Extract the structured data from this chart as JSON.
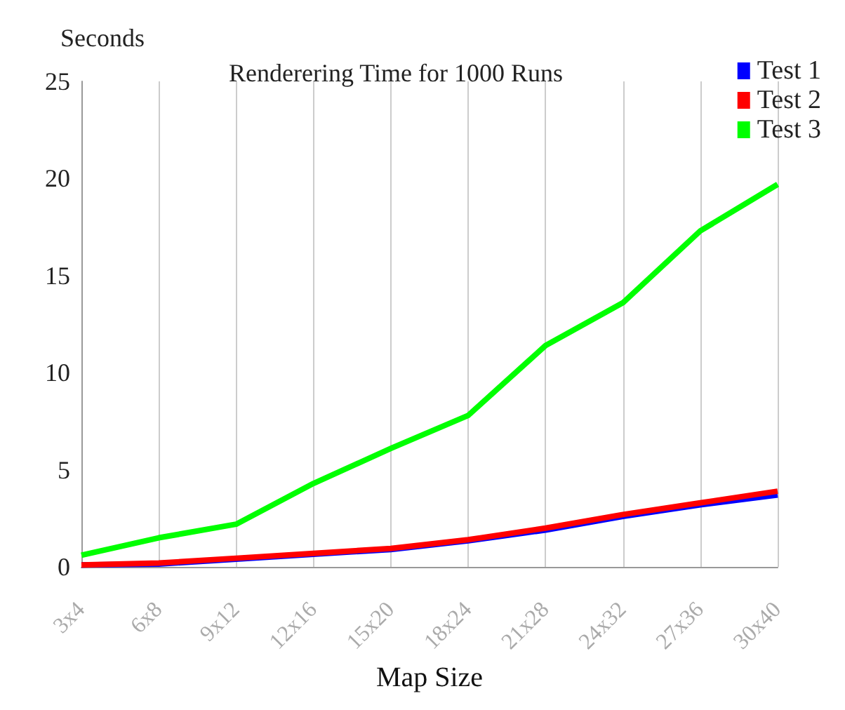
{
  "chart_data": {
    "type": "line",
    "title": "Renderering Time for 1000 Runs",
    "xlabel": "Map Size",
    "ylabel": "Seconds",
    "categories": [
      "3x4",
      "6x8",
      "9x12",
      "12x16",
      "15x20",
      "18x24",
      "21x28",
      "24x32",
      "27x36",
      "30x40"
    ],
    "series": [
      {
        "name": "Test 1",
        "color": "#0000ff",
        "values": [
          0.1,
          0.15,
          0.4,
          0.65,
          0.9,
          1.35,
          1.9,
          2.6,
          3.2,
          3.7
        ]
      },
      {
        "name": "Test 2",
        "color": "#ff0000",
        "values": [
          0.1,
          0.2,
          0.45,
          0.7,
          0.95,
          1.4,
          2.0,
          2.7,
          3.3,
          3.9
        ]
      },
      {
        "name": "Test 3",
        "color": "#00ff00",
        "values": [
          0.6,
          1.5,
          2.2,
          4.3,
          6.1,
          7.8,
          11.4,
          13.6,
          17.3,
          19.7
        ]
      }
    ],
    "ylim": [
      0,
      25
    ],
    "yticks": [
      0,
      5,
      10,
      15,
      20,
      25
    ],
    "grid": "x",
    "legend": "top right",
    "marker": "none",
    "line_style": "solid"
  }
}
